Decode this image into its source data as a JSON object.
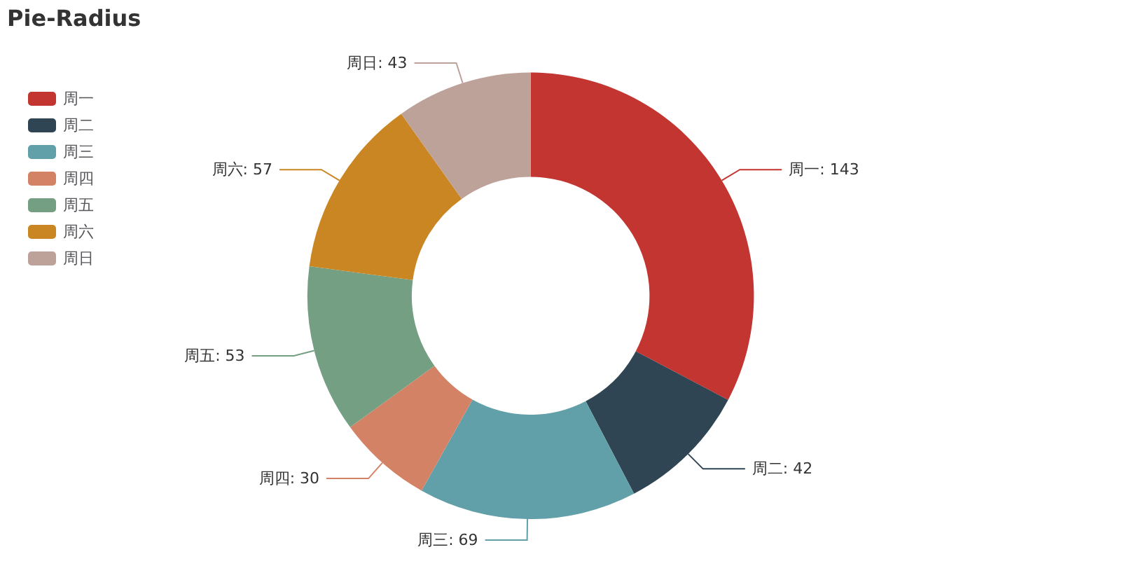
{
  "chart_data": {
    "type": "donut",
    "title": "Pie-Radius",
    "legend": "left",
    "categories": [
      "周一",
      "周二",
      "周三",
      "周四",
      "周五",
      "周六",
      "周日"
    ],
    "values": [
      143,
      42,
      69,
      30,
      53,
      57,
      43
    ],
    "colors": [
      "#c23531",
      "#2f4554",
      "#61a0a8",
      "#d48265",
      "#749f83",
      "#ca8622",
      "#bda29a"
    ],
    "value_labels": [
      "周一: 143",
      "周二: 42",
      "周三: 69",
      "周四: 30",
      "周五: 53",
      "周六: 57",
      "周日: 43"
    ]
  }
}
